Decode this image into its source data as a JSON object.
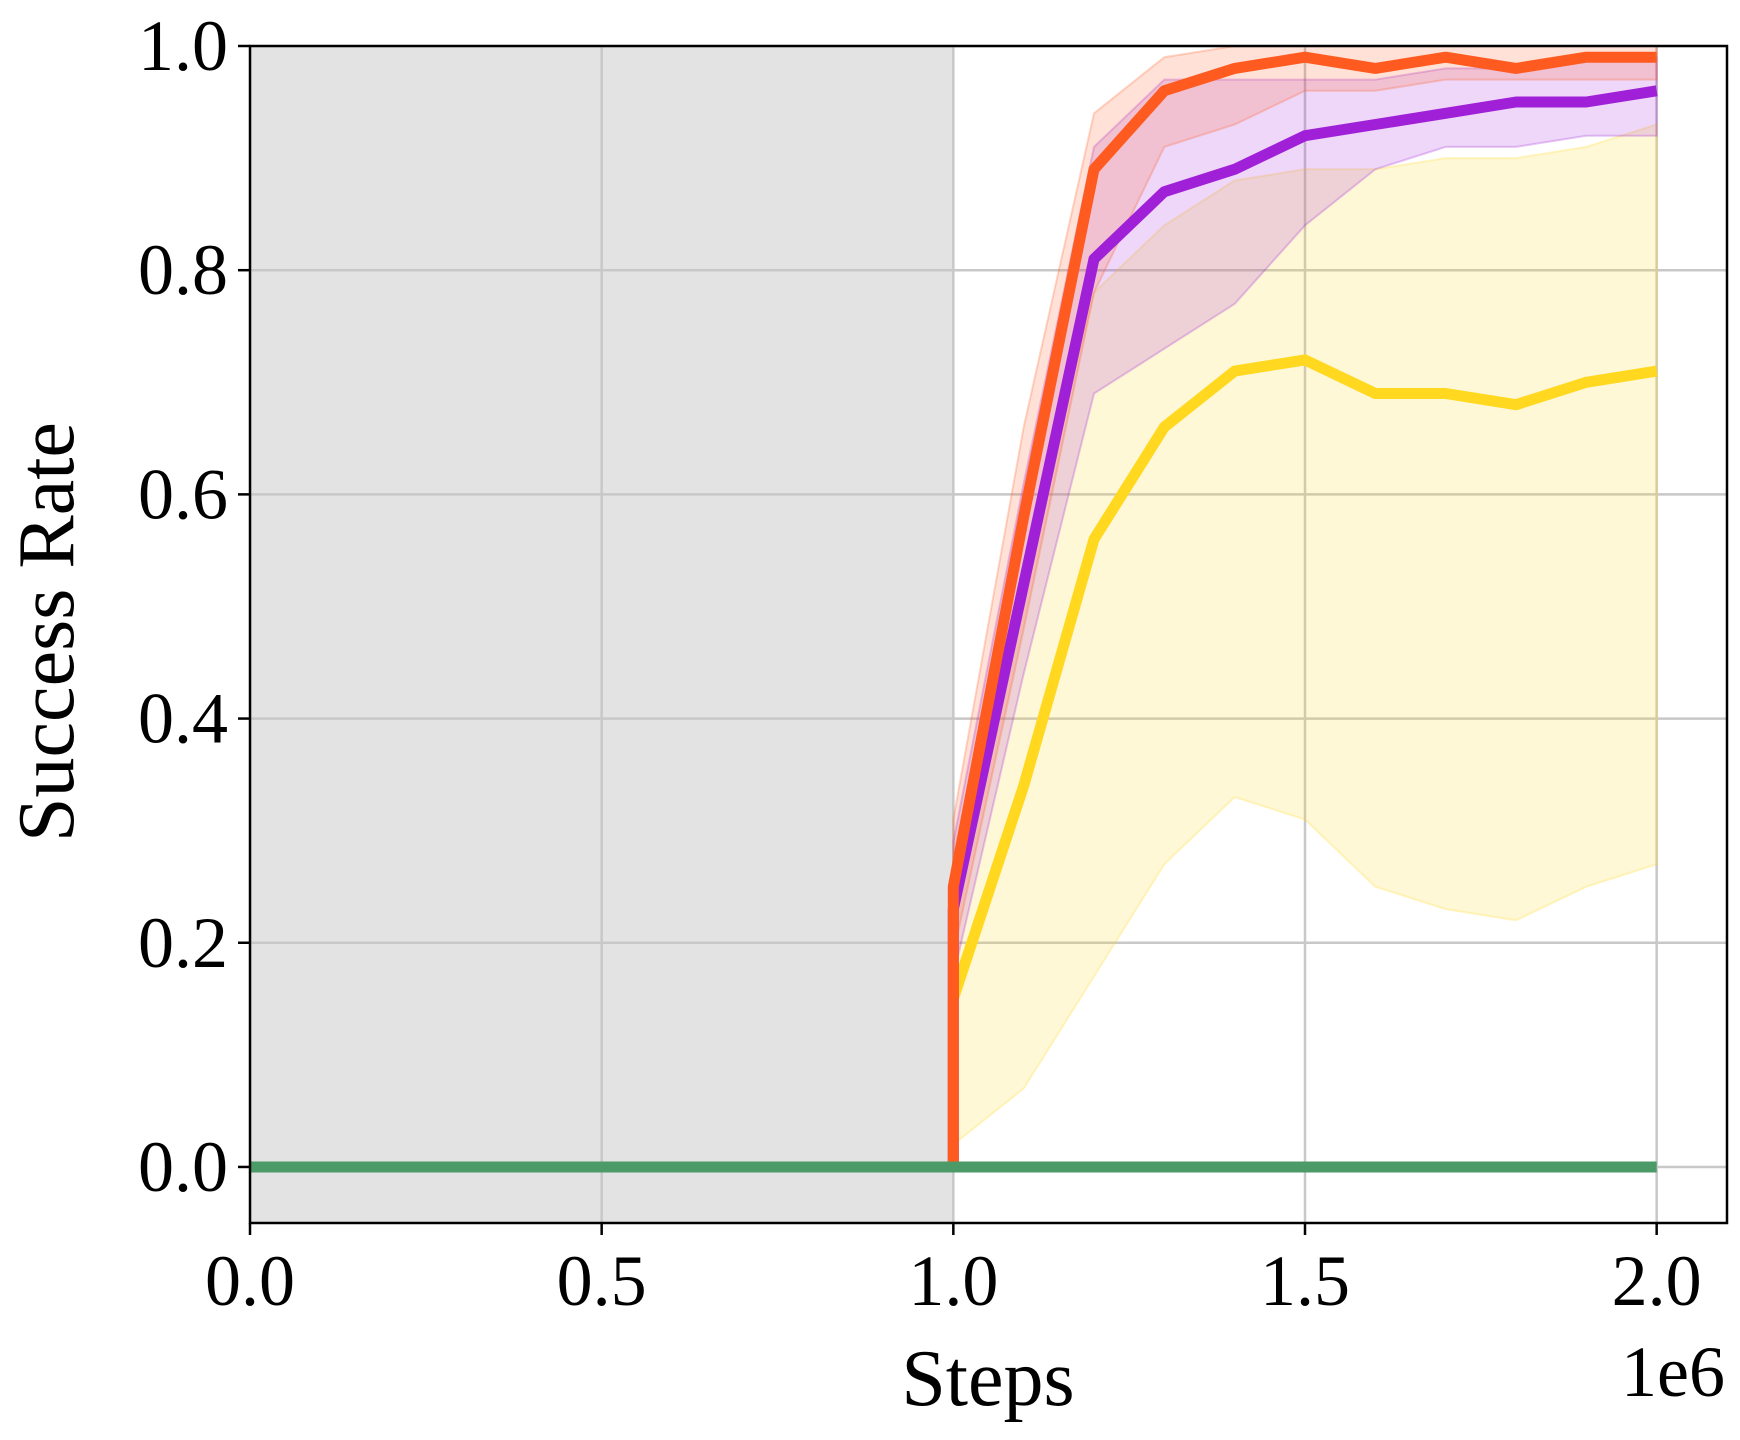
{
  "chart_data": {
    "type": "line",
    "xlabel": "Steps",
    "ylabel": "Success Rate",
    "x_offset_label": "1e6",
    "xlim": [
      0.0,
      2.1
    ],
    "ylim": [
      -0.05,
      1.0
    ],
    "x_ticks": [
      "0.0",
      "0.5",
      "1.0",
      "1.5",
      "2.0"
    ],
    "y_ticks": [
      "0.0",
      "0.2",
      "0.4",
      "0.6",
      "0.8",
      "1.0"
    ],
    "grid": true,
    "shaded_region": {
      "x_start": 0.0,
      "x_end": 1.0,
      "color": "#e3e3e3"
    },
    "series": [
      {
        "color": "#ffd81f",
        "x": [
          0.0,
          1.0,
          1.0,
          1.1,
          1.2,
          1.3,
          1.4,
          1.5,
          1.6,
          1.7,
          1.8,
          1.9,
          2.0
        ],
        "y": [
          0.0,
          0.0,
          0.15,
          0.34,
          0.56,
          0.66,
          0.71,
          0.72,
          0.69,
          0.69,
          0.68,
          0.7,
          0.71
        ],
        "lower": [
          0.0,
          0.0,
          0.02,
          0.07,
          0.17,
          0.27,
          0.33,
          0.31,
          0.25,
          0.23,
          0.22,
          0.25,
          0.27
        ],
        "upper": [
          0.0,
          0.0,
          0.28,
          0.53,
          0.78,
          0.84,
          0.88,
          0.89,
          0.89,
          0.9,
          0.9,
          0.91,
          0.93
        ]
      },
      {
        "color": "#a020d8",
        "x": [
          0.0,
          1.0,
          1.0,
          1.1,
          1.2,
          1.3,
          1.4,
          1.5,
          1.6,
          1.7,
          1.8,
          1.9,
          2.0
        ],
        "y": [
          0.0,
          0.0,
          0.23,
          0.52,
          0.81,
          0.87,
          0.89,
          0.92,
          0.93,
          0.94,
          0.95,
          0.95,
          0.96
        ],
        "lower": [
          0.0,
          0.0,
          0.17,
          0.44,
          0.69,
          0.73,
          0.77,
          0.84,
          0.89,
          0.91,
          0.91,
          0.92,
          0.92
        ],
        "upper": [
          0.0,
          0.0,
          0.29,
          0.61,
          0.91,
          0.97,
          0.97,
          0.97,
          0.97,
          0.98,
          0.98,
          0.99,
          0.99
        ]
      },
      {
        "color": "#ff5a1f",
        "x": [
          0.0,
          1.0,
          1.0,
          1.1,
          1.2,
          1.3,
          1.4,
          1.5,
          1.6,
          1.7,
          1.8,
          1.9,
          2.0
        ],
        "y": [
          0.0,
          0.0,
          0.25,
          0.58,
          0.89,
          0.96,
          0.98,
          0.99,
          0.98,
          0.99,
          0.98,
          0.99,
          0.99
        ],
        "lower": [
          0.0,
          0.0,
          0.19,
          0.48,
          0.78,
          0.91,
          0.93,
          0.96,
          0.96,
          0.97,
          0.97,
          0.97,
          0.97
        ],
        "upper": [
          0.0,
          0.0,
          0.31,
          0.66,
          0.94,
          0.99,
          1.0,
          1.0,
          1.0,
          1.0,
          1.0,
          1.0,
          1.0
        ]
      },
      {
        "color": "#4c9a68",
        "x": [
          0.0,
          2.0
        ],
        "y": [
          0.0,
          0.0
        ]
      }
    ]
  }
}
